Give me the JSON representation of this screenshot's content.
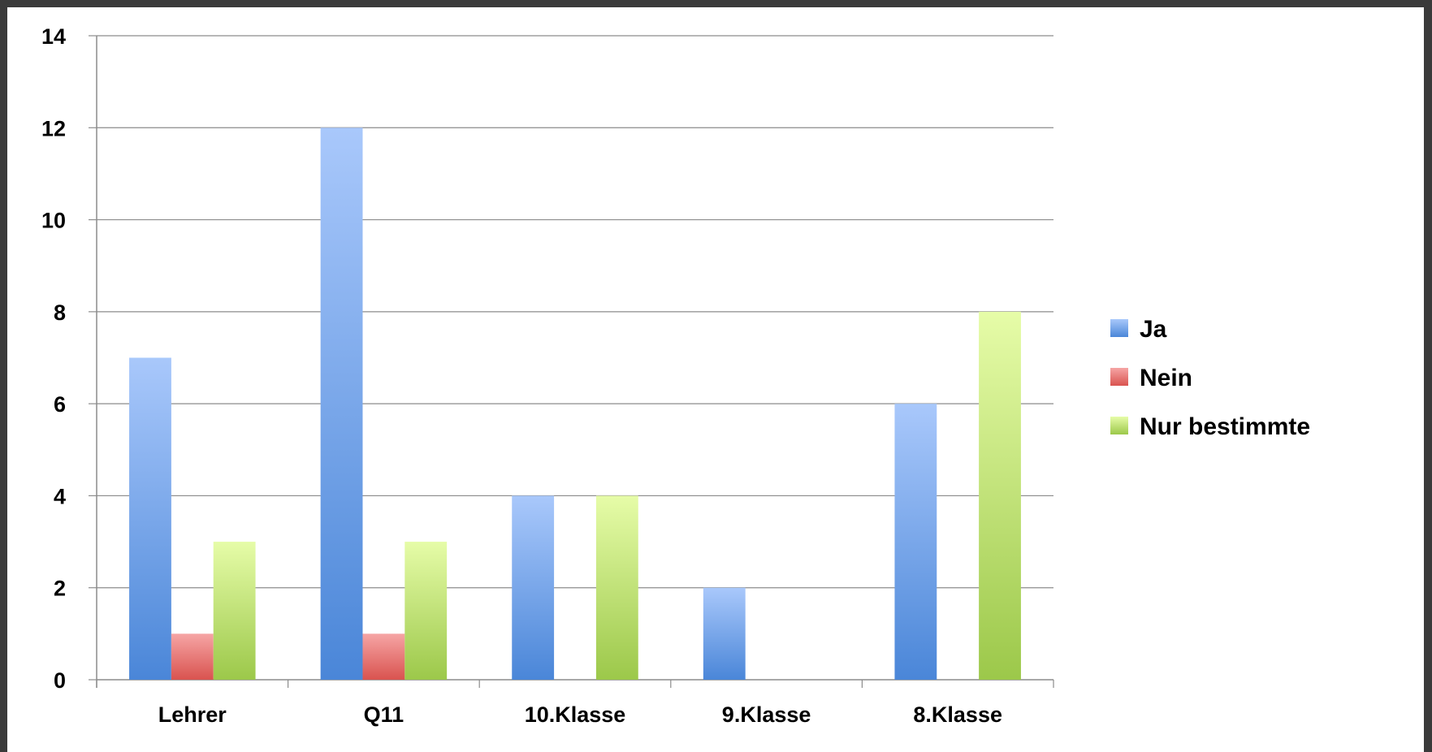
{
  "chart_data": {
    "type": "bar",
    "categories": [
      "Lehrer",
      "Q11",
      "10.Klasse",
      "9.Klasse",
      "8.Klasse"
    ],
    "series": [
      {
        "name": "Ja",
        "values": [
          7,
          12,
          4,
          2,
          6
        ],
        "color": "#4a86d8",
        "color_light": "#a9c8fb"
      },
      {
        "name": "Nein",
        "values": [
          1,
          1,
          0,
          0,
          0
        ],
        "color": "#d9534f",
        "color_light": "#f6a5a5"
      },
      {
        "name": "Nur bestimmte",
        "values": [
          3,
          3,
          4,
          0,
          8
        ],
        "color": "#9cc84a",
        "color_light": "#e6fca8"
      }
    ],
    "ylim": [
      0,
      14
    ],
    "yticks": [
      0,
      2,
      4,
      6,
      8,
      10,
      12,
      14
    ],
    "grid": true,
    "legend": "right",
    "title": "",
    "xlabel": "",
    "ylabel": ""
  }
}
